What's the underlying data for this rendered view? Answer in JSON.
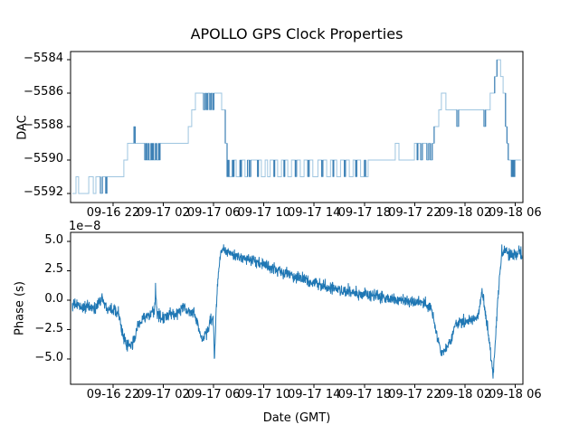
{
  "title": "APOLLO GPS Clock Properties",
  "xlabel": "Date (GMT)",
  "xaxis": {
    "unit": "hours since 09-16 18:00 GMT",
    "xlim_h": [
      0.616,
      36.616
    ],
    "tick_hours": [
      4,
      8,
      12,
      16,
      20,
      24,
      28,
      32,
      36
    ],
    "tick_labels": [
      "09-16 22",
      "09-17 02",
      "09-17 06",
      "09-17 10",
      "09-17 14",
      "09-17 18",
      "09-17 22",
      "09-18 02",
      "09-18 06"
    ]
  },
  "chart_data": [
    {
      "type": "line",
      "subtype": "step-post",
      "ylabel": "DAC",
      "line_color": "#1f77b4",
      "line_color_light": "#9ec5e0",
      "line_color_dark": "#3c80b5",
      "ylim": [
        -5592.54,
        -5583.51
      ],
      "ytick_values": [
        -5584,
        -5586,
        -5588,
        -5590,
        -5592
      ],
      "ytick_labels": [
        "−5584",
        "−5586",
        "−5588",
        "−5590",
        "−5592"
      ],
      "end_h": 36.45,
      "dense_hold_threshold_h": 0.18,
      "steps": [
        [
          0.76,
          -5592
        ],
        [
          1.05,
          -5591
        ],
        [
          1.26,
          -5592
        ],
        [
          2.06,
          -5591
        ],
        [
          2.42,
          -5592
        ],
        [
          2.63,
          -5591
        ],
        [
          2.99,
          -5592
        ],
        [
          3.14,
          -5591
        ],
        [
          3.42,
          -5592
        ],
        [
          3.5,
          -5591
        ],
        [
          4.86,
          -5590
        ],
        [
          5.15,
          -5589
        ],
        [
          5.66,
          -5588
        ],
        [
          5.76,
          -5589
        ],
        [
          6.52,
          -5590
        ],
        [
          6.62,
          -5589
        ],
        [
          6.68,
          -5590
        ],
        [
          6.8,
          -5589
        ],
        [
          6.86,
          -5590
        ],
        [
          7.02,
          -5589
        ],
        [
          7.08,
          -5590
        ],
        [
          7.14,
          -5589
        ],
        [
          7.22,
          -5590
        ],
        [
          7.38,
          -5589
        ],
        [
          7.46,
          -5590
        ],
        [
          7.62,
          -5589
        ],
        [
          7.66,
          -5590
        ],
        [
          7.74,
          -5589
        ],
        [
          9.98,
          -5588
        ],
        [
          10.26,
          -5587
        ],
        [
          10.55,
          -5586
        ],
        [
          11.2,
          -5587
        ],
        [
          11.33,
          -5586
        ],
        [
          11.44,
          -5587
        ],
        [
          11.54,
          -5586
        ],
        [
          11.7,
          -5587
        ],
        [
          11.8,
          -5586
        ],
        [
          11.92,
          -5587
        ],
        [
          12.02,
          -5586
        ],
        [
          12.64,
          -5587
        ],
        [
          12.93,
          -5589
        ],
        [
          13.07,
          -5591
        ],
        [
          13.16,
          -5590
        ],
        [
          13.22,
          -5591
        ],
        [
          13.5,
          -5590
        ],
        [
          13.56,
          -5591
        ],
        [
          13.62,
          -5590
        ],
        [
          13.8,
          -5591
        ],
        [
          14.1,
          -5590
        ],
        [
          14.16,
          -5591
        ],
        [
          14.22,
          -5590
        ],
        [
          14.5,
          -5591
        ],
        [
          14.7,
          -5590
        ],
        [
          14.84,
          -5591
        ],
        [
          14.95,
          -5590
        ],
        [
          15.5,
          -5591
        ],
        [
          15.56,
          -5590
        ],
        [
          15.8,
          -5591
        ],
        [
          16.1,
          -5590
        ],
        [
          16.3,
          -5591
        ],
        [
          16.5,
          -5590
        ],
        [
          16.8,
          -5591
        ],
        [
          16.86,
          -5590
        ],
        [
          17.1,
          -5591
        ],
        [
          17.4,
          -5590
        ],
        [
          17.6,
          -5591
        ],
        [
          17.66,
          -5590
        ],
        [
          17.9,
          -5591
        ],
        [
          18.2,
          -5590
        ],
        [
          18.5,
          -5591
        ],
        [
          18.6,
          -5590
        ],
        [
          18.9,
          -5591
        ],
        [
          19.2,
          -5590
        ],
        [
          19.5,
          -5591
        ],
        [
          19.6,
          -5590
        ],
        [
          19.9,
          -5591
        ],
        [
          20.3,
          -5590
        ],
        [
          20.6,
          -5591
        ],
        [
          20.7,
          -5590
        ],
        [
          21.0,
          -5591
        ],
        [
          21.3,
          -5590
        ],
        [
          21.5,
          -5591
        ],
        [
          21.56,
          -5590
        ],
        [
          21.8,
          -5591
        ],
        [
          22.1,
          -5590
        ],
        [
          22.4,
          -5591
        ],
        [
          22.5,
          -5590
        ],
        [
          22.8,
          -5591
        ],
        [
          23.1,
          -5590
        ],
        [
          23.3,
          -5591
        ],
        [
          23.4,
          -5590
        ],
        [
          23.7,
          -5591
        ],
        [
          24.0,
          -5590
        ],
        [
          24.1,
          -5591
        ],
        [
          24.3,
          -5590
        ],
        [
          26.46,
          -5589
        ],
        [
          26.75,
          -5590
        ],
        [
          27.98,
          -5589
        ],
        [
          28.2,
          -5590
        ],
        [
          28.26,
          -5589
        ],
        [
          28.48,
          -5590
        ],
        [
          28.62,
          -5589
        ],
        [
          28.98,
          -5590
        ],
        [
          29.12,
          -5589
        ],
        [
          29.25,
          -5590
        ],
        [
          29.4,
          -5589
        ],
        [
          29.55,
          -5588
        ],
        [
          29.92,
          -5587
        ],
        [
          30.13,
          -5586
        ],
        [
          30.49,
          -5587
        ],
        [
          31.36,
          -5588
        ],
        [
          31.5,
          -5587
        ],
        [
          33.52,
          -5588
        ],
        [
          33.64,
          -5587
        ],
        [
          34.01,
          -5586
        ],
        [
          34.37,
          -5585
        ],
        [
          34.55,
          -5584
        ],
        [
          34.84,
          -5585
        ],
        [
          35.04,
          -5586
        ],
        [
          35.23,
          -5588
        ],
        [
          35.35,
          -5589
        ],
        [
          35.45,
          -5590
        ],
        [
          35.7,
          -5591
        ],
        [
          35.76,
          -5590
        ],
        [
          35.8,
          -5591
        ],
        [
          35.86,
          -5590
        ],
        [
          35.9,
          -5591
        ],
        [
          35.97,
          -5590
        ]
      ]
    },
    {
      "type": "line",
      "ylabel": "Phase (s)",
      "offset_text": "1e−8",
      "value_unit": "1e-8 s",
      "line_color": "#1f77b4",
      "ylim": [
        -7.13,
        5.75
      ],
      "ytick_values": [
        5.0,
        2.5,
        0.0,
        -2.5,
        -5.0
      ],
      "ytick_labels": [
        "5.0",
        "2.5",
        "0.0",
        "−2.5",
        "−5.0"
      ],
      "sample_step_h": 0.02,
      "noise_amp": 0.5,
      "noise_seed": 1234,
      "anchors": [
        [
          0.76,
          -0.35
        ],
        [
          1.5,
          -0.55
        ],
        [
          2.6,
          -0.7
        ],
        [
          3.05,
          0.15
        ],
        [
          3.15,
          0.35
        ],
        [
          3.35,
          -0.55
        ],
        [
          4.1,
          -0.75
        ],
        [
          4.45,
          -1.0
        ],
        [
          4.7,
          -2.6
        ],
        [
          5.0,
          -3.8
        ],
        [
          5.35,
          -3.95
        ],
        [
          5.65,
          -3.5
        ],
        [
          5.95,
          -2.2
        ],
        [
          6.3,
          -1.55
        ],
        [
          7.0,
          -1.3
        ],
        [
          7.3,
          -1.05
        ],
        [
          7.38,
          1.05
        ],
        [
          7.5,
          -1.1
        ],
        [
          7.9,
          -1.5
        ],
        [
          8.6,
          -1.25
        ],
        [
          9.3,
          -1.05
        ],
        [
          9.6,
          -0.35
        ],
        [
          9.9,
          -1.05
        ],
        [
          10.4,
          -0.95
        ],
        [
          10.7,
          -1.9
        ],
        [
          11.0,
          -3.3
        ],
        [
          11.25,
          -3.1
        ],
        [
          11.5,
          -2.7
        ],
        [
          11.75,
          -1.7
        ],
        [
          11.95,
          -1.4
        ],
        [
          12.02,
          -3.0
        ],
        [
          12.06,
          -5.3
        ],
        [
          12.1,
          -4.0
        ],
        [
          12.2,
          -1.0
        ],
        [
          12.35,
          2.0
        ],
        [
          12.55,
          3.9
        ],
        [
          12.75,
          4.3
        ],
        [
          13.1,
          4.0
        ],
        [
          14.0,
          3.7
        ],
        [
          15.0,
          3.35
        ],
        [
          16.0,
          3.0
        ],
        [
          17.0,
          2.6
        ],
        [
          18.0,
          2.2
        ],
        [
          19.0,
          1.85
        ],
        [
          20.0,
          1.5
        ],
        [
          21.0,
          1.1
        ],
        [
          22.0,
          0.85
        ],
        [
          23.0,
          0.6
        ],
        [
          24.0,
          0.5
        ],
        [
          25.0,
          0.3
        ],
        [
          26.0,
          0.15
        ],
        [
          27.0,
          0.0
        ],
        [
          28.0,
          -0.15
        ],
        [
          28.8,
          -0.3
        ],
        [
          29.3,
          -0.6
        ],
        [
          29.7,
          -2.6
        ],
        [
          30.0,
          -4.1
        ],
        [
          30.3,
          -4.5
        ],
        [
          30.6,
          -4.1
        ],
        [
          30.9,
          -3.4
        ],
        [
          31.2,
          -2.2
        ],
        [
          31.5,
          -1.8
        ],
        [
          32.2,
          -1.8
        ],
        [
          32.8,
          -1.5
        ],
        [
          33.1,
          -1.3
        ],
        [
          33.37,
          0.9
        ],
        [
          33.6,
          -0.9
        ],
        [
          33.85,
          -2.5
        ],
        [
          34.05,
          -4.6
        ],
        [
          34.24,
          -6.4
        ],
        [
          34.45,
          -3.2
        ],
        [
          34.65,
          0.5
        ],
        [
          34.9,
          3.6
        ],
        [
          35.1,
          4.3
        ],
        [
          35.45,
          3.9
        ],
        [
          35.8,
          4.0
        ],
        [
          36.1,
          3.6
        ],
        [
          36.3,
          4.2
        ],
        [
          36.55,
          3.9
        ]
      ]
    }
  ]
}
